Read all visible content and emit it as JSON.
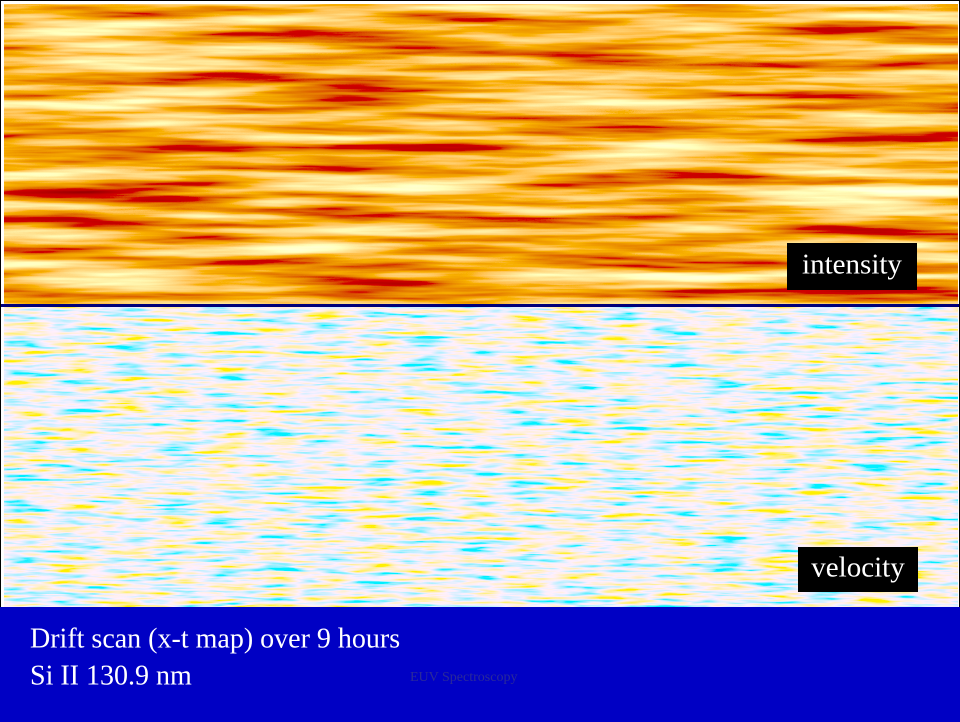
{
  "slide": {
    "panels": [
      {
        "label": "intensity"
      },
      {
        "label": "velocity"
      }
    ],
    "caption": [
      "Drift scan (x-t map) over 9 hours",
      "Si II 130.9 nm"
    ],
    "footer": "EUV Spectroscopy"
  }
}
